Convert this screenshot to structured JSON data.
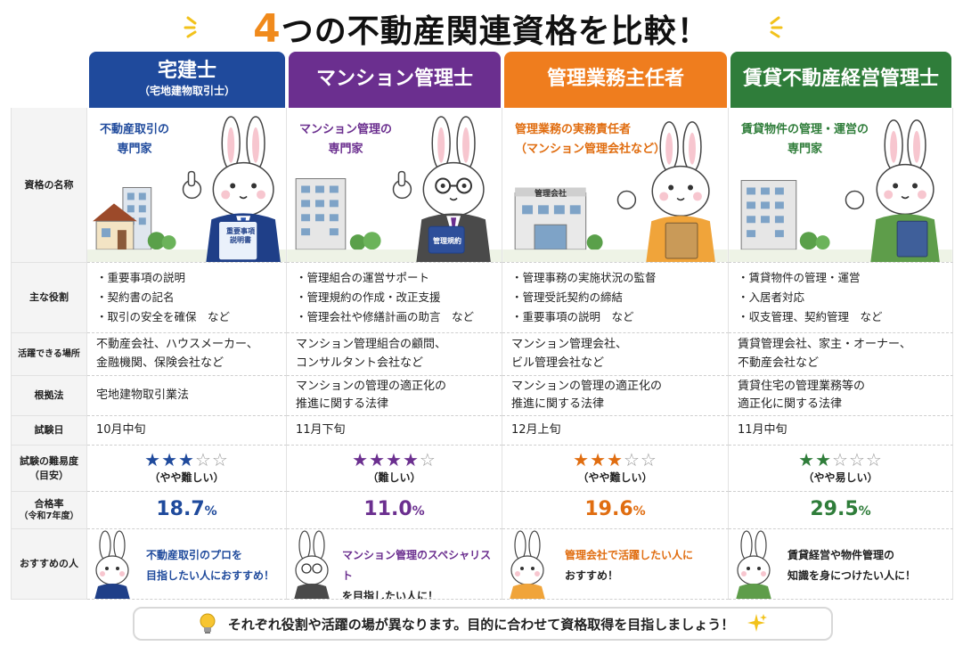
{
  "title": {
    "num": "4",
    "rest": "つの不動産関連資格を比較！"
  },
  "columns": [
    {
      "name": "宅建士",
      "sub": "（宅地建物取引士）",
      "color": "#1f4a9c",
      "role_title_line1": "不動産取引の",
      "role_title_line2": "専門家",
      "doc_label_line1": "重要事項",
      "doc_label_line2": "説明書",
      "duties": [
        "・重要事項の説明",
        "・契約書の記名",
        "・取引の安全を確保　など"
      ],
      "places": [
        "不動産会社、ハウスメーカー、",
        "金融機関、保険会社など"
      ],
      "law": [
        "宅地建物取引業法"
      ],
      "exam": "10月中旬",
      "stars_on": "★★★",
      "stars_off": "☆☆",
      "difficulty": "（やや難しい）",
      "rate": "18.7",
      "rate_unit": "%",
      "rec_hl": "不動産取引のプロを",
      "rec_tail": "",
      "rec_line2": "目指したい人におすすめ！"
    },
    {
      "name": "マンション管理士",
      "sub": "",
      "color": "#6b2f8f",
      "role_title_line1": "マンション管理の",
      "role_title_line2": "専門家",
      "doc_label_line1": "管理規約",
      "doc_label_line2": "",
      "duties": [
        "・管理組合の運営サポート",
        "・管理規約の作成・改正支援",
        "・管理会社や修繕計画の助言　など"
      ],
      "places": [
        "マンション管理組合の顧問、",
        "コンサルタント会社など"
      ],
      "law": [
        "マンションの管理の適正化の",
        "推進に関する法律"
      ],
      "exam": "11月下旬",
      "stars_on": "★★★★",
      "stars_off": "☆",
      "difficulty": "（難しい）",
      "rate": "11.0",
      "rate_unit": "%",
      "rec_hl": "マンション管理のスペシャリスト",
      "rec_tail": "",
      "rec_line2": "を目指したい人に！"
    },
    {
      "name": "管理業務主任者",
      "sub": "",
      "color": "#ef7d1e",
      "role_title_line1": "管理業務の実務責任者",
      "role_title_line2": "（マンション管理会社など）",
      "doc_label_line1": "管理会社",
      "doc_label_line2": "",
      "duties": [
        "・管理事務の実施状況の監督",
        "・管理受託契約の締結",
        "・重要事項の説明　など"
      ],
      "places": [
        "マンション管理会社、",
        "ビル管理会社など"
      ],
      "law": [
        "マンションの管理の適正化の",
        "推進に関する法律"
      ],
      "exam": "12月上旬",
      "stars_on": "★★★",
      "stars_off": "☆☆",
      "difficulty": "（やや難しい）",
      "rate": "19.6",
      "rate_unit": "%",
      "rec_hl": "管理会社で活躍したい人に",
      "rec_tail": "",
      "rec_line2": "おすすめ！"
    },
    {
      "name": "賃貸不動産経営管理士",
      "sub": "",
      "color": "#2f7d3a",
      "role_title_line1": "賃貸物件の管理・運営の",
      "role_title_line2": "専門家",
      "doc_label_line1": "",
      "doc_label_line2": "",
      "duties": [
        "・賃貸物件の管理・運営",
        "・入居者対応",
        "・収支管理、契約管理　など"
      ],
      "places": [
        "賃貸管理会社、家主・オーナー、",
        "不動産会社など"
      ],
      "law": [
        "賃貸住宅の管理業務等の",
        "適正化に関する法律"
      ],
      "exam": "11月中旬",
      "stars_on": "★★",
      "stars_off": "☆☆☆",
      "difficulty": "（やや易しい）",
      "rate": "29.5",
      "rate_unit": "%",
      "rec_hl": "賃貸経営",
      "rec_tail": "や",
      "rec_hl2": "物件管理",
      "rec_tail2": "の",
      "rec_line2": "知識を身につけたい人に！"
    }
  ],
  "row_headers": {
    "name": "資格の名称",
    "duties": "主な役割",
    "places": "活躍できる場所",
    "law": "根拠法",
    "exam": "試験日",
    "difficulty_1": "試験の難易度",
    "difficulty_2": "（目安）",
    "rate_1": "合格率",
    "rate_2": "（令和7年度）",
    "rec": "おすすめの人"
  },
  "footer": {
    "text": "それぞれ役割や活躍の場が異なります。目的に合わせて資格取得を目指しましょう！"
  },
  "icons": [
    "spark-icon",
    "lightbulb-icon",
    "sparkle-icon",
    "rabbit-mascot-icon",
    "building-icon",
    "house-icon",
    "tree-icon"
  ]
}
